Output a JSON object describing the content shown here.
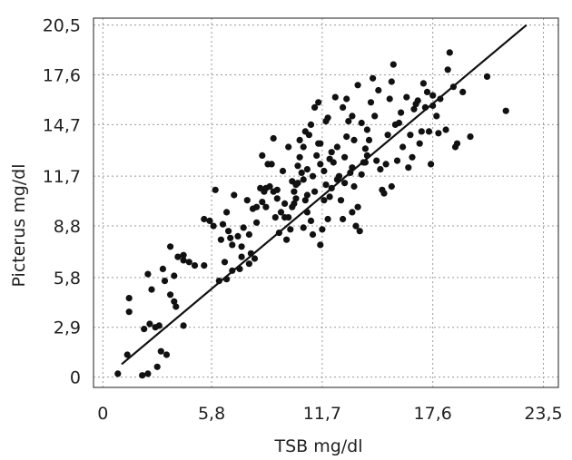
{
  "chart_data": {
    "type": "scatter",
    "title": "",
    "xlabel": "TSB mg/dl",
    "ylabel": "Picterus mg/dl",
    "xlim": [
      -0.5,
      24.3
    ],
    "ylim": [
      -0.6,
      20.9
    ],
    "x_ticks": [
      {
        "value": 0,
        "label": "0"
      },
      {
        "value": 5.8,
        "label": "5,8"
      },
      {
        "value": 11.7,
        "label": "11,7"
      },
      {
        "value": 17.6,
        "label": "17,6"
      },
      {
        "value": 23.5,
        "label": "23,5"
      }
    ],
    "y_ticks": [
      {
        "value": 0,
        "label": "0"
      },
      {
        "value": 2.9,
        "label": "2,9"
      },
      {
        "value": 5.8,
        "label": "5,8"
      },
      {
        "value": 8.8,
        "label": "8,8"
      },
      {
        "value": 11.7,
        "label": "11,7"
      },
      {
        "value": 14.7,
        "label": "14,7"
      },
      {
        "value": 17.6,
        "label": "17,6"
      },
      {
        "value": 20.5,
        "label": "20,5"
      }
    ],
    "grid": true,
    "grid_style": "dotted",
    "regression_line": {
      "x": [
        1.0,
        22.6
      ],
      "y": [
        0.75,
        20.5
      ]
    },
    "marker_color": "#111111",
    "series": [
      {
        "points": [
          [
            0.8,
            0.2
          ],
          [
            2.1,
            0.1
          ],
          [
            2.4,
            0.2
          ],
          [
            2.9,
            0.6
          ],
          [
            3.1,
            1.5
          ],
          [
            3.4,
            1.3
          ],
          [
            1.3,
            1.3
          ],
          [
            2.2,
            2.8
          ],
          [
            2.5,
            3.1
          ],
          [
            2.8,
            2.9
          ],
          [
            3.0,
            3.0
          ],
          [
            4.3,
            3.0
          ],
          [
            1.4,
            4.6
          ],
          [
            1.4,
            3.8
          ],
          [
            2.4,
            6.0
          ],
          [
            3.2,
            6.3
          ],
          [
            3.6,
            7.6
          ],
          [
            3.8,
            4.4
          ],
          [
            3.9,
            4.1
          ],
          [
            4.0,
            7.0
          ],
          [
            4.3,
            7.1
          ],
          [
            4.3,
            6.8
          ],
          [
            4.6,
            6.7
          ],
          [
            3.8,
            5.9
          ],
          [
            5.4,
            6.5
          ],
          [
            5.7,
            9.1
          ],
          [
            5.9,
            8.8
          ],
          [
            6.0,
            10.9
          ],
          [
            6.2,
            5.6
          ],
          [
            6.5,
            6.7
          ],
          [
            6.6,
            5.7
          ],
          [
            6.9,
            6.2
          ],
          [
            6.4,
            8.9
          ],
          [
            6.6,
            9.6
          ],
          [
            6.7,
            8.5
          ],
          [
            7.2,
            8.2
          ],
          [
            7.4,
            7.6
          ],
          [
            7.5,
            8.7
          ],
          [
            7.8,
            8.3
          ],
          [
            6.9,
            7.7
          ],
          [
            7.0,
            10.6
          ],
          [
            7.4,
            7.0
          ],
          [
            7.3,
            6.3
          ],
          [
            7.8,
            6.6
          ],
          [
            7.9,
            7.2
          ],
          [
            8.1,
            6.9
          ],
          [
            8.2,
            9.9
          ],
          [
            8.5,
            12.9
          ],
          [
            8.6,
            10.8
          ],
          [
            8.5,
            10.2
          ],
          [
            8.7,
            11.0
          ],
          [
            8.7,
            9.9
          ],
          [
            8.8,
            12.4
          ],
          [
            9.0,
            12.4
          ],
          [
            9.1,
            13.9
          ],
          [
            9.1,
            10.8
          ],
          [
            9.3,
            10.4
          ],
          [
            9.5,
            9.6
          ],
          [
            9.2,
            9.3
          ],
          [
            9.4,
            8.4
          ],
          [
            9.7,
            9.3
          ],
          [
            9.8,
            8.0
          ],
          [
            10.0,
            8.6
          ],
          [
            9.9,
            9.3
          ],
          [
            10.1,
            9.9
          ],
          [
            10.2,
            10.1
          ],
          [
            10.2,
            10.8
          ],
          [
            10.3,
            10.4
          ],
          [
            10.3,
            11.2
          ],
          [
            10.4,
            12.3
          ],
          [
            10.5,
            13.8
          ],
          [
            10.6,
            11.9
          ],
          [
            10.7,
            11.5
          ],
          [
            10.7,
            13.4
          ],
          [
            10.8,
            10.3
          ],
          [
            10.9,
            12.1
          ],
          [
            10.9,
            9.6
          ],
          [
            11.0,
            14.1
          ],
          [
            11.1,
            9.1
          ],
          [
            11.1,
            14.7
          ],
          [
            11.2,
            11.7
          ],
          [
            11.3,
            10.8
          ],
          [
            11.4,
            12.9
          ],
          [
            11.5,
            13.6
          ],
          [
            11.3,
            15.7
          ],
          [
            11.5,
            16.0
          ],
          [
            11.6,
            7.7
          ],
          [
            11.7,
            8.6
          ],
          [
            11.8,
            10.3
          ],
          [
            11.8,
            12.0
          ],
          [
            11.9,
            14.9
          ],
          [
            12.0,
            9.2
          ],
          [
            12.1,
            10.5
          ],
          [
            12.2,
            11.0
          ],
          [
            12.2,
            13.1
          ],
          [
            12.3,
            12.5
          ],
          [
            12.5,
            11.5
          ],
          [
            12.5,
            13.4
          ],
          [
            12.7,
            10.3
          ],
          [
            12.8,
            9.2
          ],
          [
            12.9,
            12.8
          ],
          [
            13.0,
            14.0
          ],
          [
            13.1,
            14.9
          ],
          [
            13.3,
            15.2
          ],
          [
            13.2,
            11.9
          ],
          [
            13.4,
            11.1
          ],
          [
            13.3,
            9.6
          ],
          [
            13.5,
            8.8
          ],
          [
            13.6,
            9.9
          ],
          [
            13.7,
            8.5
          ],
          [
            13.8,
            11.8
          ],
          [
            13.9,
            12.5
          ],
          [
            14.0,
            13.3
          ],
          [
            14.1,
            14.4
          ],
          [
            14.3,
            16.0
          ],
          [
            14.4,
            17.4
          ],
          [
            14.5,
            15.2
          ],
          [
            14.6,
            12.6
          ],
          [
            14.8,
            12.1
          ],
          [
            14.9,
            10.9
          ],
          [
            15.0,
            10.7
          ],
          [
            15.2,
            14.1
          ],
          [
            15.3,
            16.2
          ],
          [
            15.4,
            17.2
          ],
          [
            15.5,
            18.2
          ],
          [
            15.6,
            14.7
          ],
          [
            15.7,
            12.6
          ],
          [
            15.9,
            15.4
          ],
          [
            16.0,
            13.4
          ],
          [
            16.3,
            12.2
          ],
          [
            16.4,
            14.1
          ],
          [
            16.5,
            12.8
          ],
          [
            16.7,
            15.9
          ],
          [
            16.8,
            16.1
          ],
          [
            16.9,
            13.6
          ],
          [
            17.0,
            14.3
          ],
          [
            17.2,
            15.7
          ],
          [
            17.3,
            16.6
          ],
          [
            17.4,
            14.3
          ],
          [
            17.5,
            12.4
          ],
          [
            17.6,
            15.8
          ],
          [
            17.6,
            16.4
          ],
          [
            17.9,
            14.2
          ],
          [
            18.0,
            16.2
          ],
          [
            18.3,
            14.4
          ],
          [
            18.5,
            18.9
          ],
          [
            18.7,
            16.9
          ],
          [
            18.8,
            13.4
          ],
          [
            18.9,
            13.6
          ],
          [
            19.2,
            16.6
          ],
          [
            19.6,
            14.0
          ],
          [
            20.5,
            17.5
          ],
          [
            21.5,
            15.5
          ],
          [
            18.4,
            17.9
          ],
          [
            17.1,
            17.1
          ],
          [
            16.2,
            16.3
          ],
          [
            10.1,
            11.4
          ],
          [
            9.6,
            12.0
          ],
          [
            8.9,
            11.1
          ],
          [
            10.4,
            11.3
          ],
          [
            9.3,
            10.9
          ],
          [
            10.7,
            8.7
          ],
          [
            11.2,
            8.3
          ],
          [
            12.4,
            16.3
          ],
          [
            12.8,
            15.7
          ],
          [
            13.6,
            17.0
          ],
          [
            14.7,
            16.7
          ],
          [
            9.9,
            13.4
          ],
          [
            10.8,
            14.3
          ],
          [
            11.6,
            13.6
          ],
          [
            12.1,
            12.7
          ],
          [
            13.4,
            13.8
          ],
          [
            14.2,
            13.8
          ],
          [
            15.1,
            12.4
          ],
          [
            15.4,
            11.1
          ],
          [
            14.1,
            12.9
          ],
          [
            13.0,
            16.2
          ],
          [
            12.0,
            15.1
          ],
          [
            8.4,
            11.0
          ],
          [
            8.0,
            9.8
          ],
          [
            7.7,
            10.3
          ],
          [
            6.8,
            8.1
          ],
          [
            6.3,
            8.0
          ],
          [
            5.4,
            9.2
          ],
          [
            4.9,
            6.5
          ],
          [
            3.3,
            5.6
          ],
          [
            2.6,
            5.1
          ],
          [
            3.6,
            4.8
          ],
          [
            11.6,
            12.4
          ],
          [
            10.5,
            12.8
          ],
          [
            12.9,
            11.3
          ],
          [
            13.8,
            14.8
          ],
          [
            15.8,
            14.8
          ],
          [
            16.6,
            15.6
          ],
          [
            17.8,
            15.2
          ],
          [
            9.7,
            10.1
          ],
          [
            10.9,
            10.6
          ],
          [
            11.9,
            11.2
          ],
          [
            12.6,
            11.7
          ],
          [
            13.3,
            12.2
          ],
          [
            14.0,
            12.5
          ],
          [
            8.2,
            9.0
          ]
        ]
      }
    ]
  }
}
